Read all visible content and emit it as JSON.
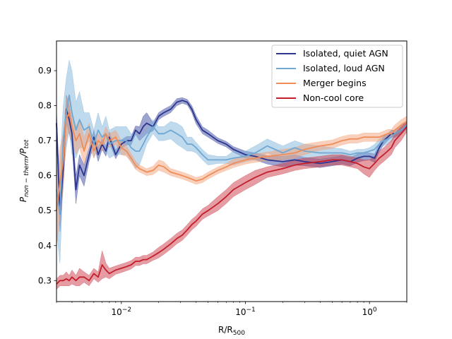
{
  "chart_data": {
    "type": "line",
    "xscale": "log",
    "xlim": [
      0.003,
      2.0
    ],
    "ylim": [
      0.24,
      0.985
    ],
    "xlabel_main": "R/R",
    "xlabel_sub": "500",
    "ylabel_main": "P",
    "ylabel_sub1": "non − therm",
    "ylabel_mid": "/P",
    "ylabel_sub2": "tot",
    "x_ticks": [
      {
        "value": 0.01,
        "label_base": "10",
        "label_exp": "−2"
      },
      {
        "value": 0.1,
        "label_base": "10",
        "label_exp": "−1"
      },
      {
        "value": 1,
        "label_base": "10",
        "label_exp": "0"
      }
    ],
    "y_ticks": [
      0.3,
      0.4,
      0.5,
      0.6,
      0.7,
      0.8,
      0.9
    ],
    "y_tick_labels": [
      "0.3",
      "0.4",
      "0.5",
      "0.6",
      "0.7",
      "0.8",
      "0.9"
    ],
    "grid": false,
    "legend_position": "top-right",
    "series": [
      {
        "name": "Isolated, quiet AGN",
        "color": "#2c3590",
        "band_color": "#3a4aa0",
        "x": [
          0.003,
          0.0032,
          0.0034,
          0.0036,
          0.0038,
          0.004,
          0.0043,
          0.0046,
          0.005,
          0.0055,
          0.006,
          0.0065,
          0.007,
          0.0075,
          0.008,
          0.009,
          0.01,
          0.011,
          0.012,
          0.013,
          0.014,
          0.015,
          0.016,
          0.018,
          0.02,
          0.022,
          0.025,
          0.028,
          0.031,
          0.034,
          0.037,
          0.04,
          0.045,
          0.05,
          0.06,
          0.07,
          0.08,
          0.1,
          0.12,
          0.15,
          0.2,
          0.25,
          0.3,
          0.4,
          0.5,
          0.6,
          0.7,
          0.8,
          0.9,
          1.0,
          1.1,
          1.2,
          1.3,
          1.4,
          1.5,
          1.6,
          1.8,
          2.0
        ],
        "y": [
          0.75,
          0.49,
          0.62,
          0.79,
          0.76,
          0.72,
          0.56,
          0.63,
          0.6,
          0.66,
          0.71,
          0.66,
          0.69,
          0.67,
          0.71,
          0.66,
          0.69,
          0.7,
          0.7,
          0.73,
          0.72,
          0.74,
          0.75,
          0.74,
          0.77,
          0.78,
          0.79,
          0.81,
          0.815,
          0.81,
          0.79,
          0.76,
          0.73,
          0.72,
          0.7,
          0.69,
          0.675,
          0.66,
          0.655,
          0.645,
          0.64,
          0.645,
          0.64,
          0.635,
          0.64,
          0.645,
          0.64,
          0.65,
          0.655,
          0.655,
          0.65,
          0.68,
          0.7,
          0.71,
          0.72,
          0.72,
          0.73,
          0.745
        ],
        "spread": [
          0.04,
          0.05,
          0.05,
          0.04,
          0.04,
          0.03,
          0.04,
          0.03,
          0.03,
          0.02,
          0.02,
          0.02,
          0.015,
          0.015,
          0.015,
          0.012,
          0.012,
          0.012,
          0.012,
          0.012,
          0.02,
          0.03,
          0.03,
          0.012,
          0.01,
          0.01,
          0.01,
          0.01,
          0.008,
          0.008,
          0.01,
          0.012,
          0.01,
          0.01,
          0.008,
          0.008,
          0.008,
          0.01,
          0.01,
          0.012,
          0.015,
          0.015,
          0.012,
          0.012,
          0.012,
          0.012,
          0.012,
          0.012,
          0.012,
          0.01,
          0.012,
          0.012,
          0.012,
          0.01,
          0.01,
          0.01,
          0.01,
          0.01
        ]
      },
      {
        "name": "Isolated, loud AGN",
        "color": "#6fa8d2",
        "band_color": "#7fb4dc",
        "x": [
          0.003,
          0.0032,
          0.0034,
          0.0036,
          0.0038,
          0.004,
          0.0043,
          0.0046,
          0.005,
          0.0055,
          0.006,
          0.0065,
          0.007,
          0.0075,
          0.008,
          0.009,
          0.01,
          0.011,
          0.012,
          0.013,
          0.014,
          0.015,
          0.016,
          0.018,
          0.02,
          0.022,
          0.025,
          0.028,
          0.031,
          0.034,
          0.037,
          0.04,
          0.045,
          0.05,
          0.06,
          0.07,
          0.08,
          0.1,
          0.12,
          0.15,
          0.2,
          0.25,
          0.3,
          0.4,
          0.5,
          0.6,
          0.7,
          0.8,
          0.9,
          1.0,
          1.1,
          1.2,
          1.3,
          1.4,
          1.5,
          1.6,
          1.8,
          2.0
        ],
        "y": [
          0.56,
          0.49,
          0.7,
          0.78,
          0.83,
          0.78,
          0.73,
          0.76,
          0.73,
          0.74,
          0.69,
          0.73,
          0.71,
          0.72,
          0.69,
          0.7,
          0.7,
          0.7,
          0.68,
          0.67,
          0.67,
          0.69,
          0.71,
          0.74,
          0.72,
          0.72,
          0.73,
          0.72,
          0.71,
          0.69,
          0.69,
          0.68,
          0.66,
          0.645,
          0.645,
          0.645,
          0.65,
          0.655,
          0.665,
          0.685,
          0.665,
          0.68,
          0.67,
          0.665,
          0.665,
          0.665,
          0.66,
          0.665,
          0.665,
          0.67,
          0.675,
          0.69,
          0.7,
          0.705,
          0.71,
          0.72,
          0.73,
          0.745
        ],
        "spread": [
          0.12,
          0.14,
          0.1,
          0.1,
          0.1,
          0.12,
          0.08,
          0.08,
          0.05,
          0.04,
          0.04,
          0.05,
          0.03,
          0.05,
          0.04,
          0.04,
          0.04,
          0.04,
          0.04,
          0.05,
          0.04,
          0.03,
          0.02,
          0.02,
          0.02,
          0.02,
          0.025,
          0.03,
          0.03,
          0.02,
          0.02,
          0.015,
          0.015,
          0.015,
          0.01,
          0.01,
          0.02,
          0.015,
          0.02,
          0.02,
          0.02,
          0.02,
          0.02,
          0.02,
          0.015,
          0.012,
          0.01,
          0.01,
          0.01,
          0.01,
          0.015,
          0.015,
          0.015,
          0.015,
          0.012,
          0.012,
          0.012,
          0.012
        ]
      },
      {
        "name": "Merger begins",
        "color": "#f08c58",
        "band_color": "#f4a27a",
        "x": [
          0.003,
          0.0032,
          0.0034,
          0.0036,
          0.0038,
          0.004,
          0.0043,
          0.0046,
          0.005,
          0.0055,
          0.006,
          0.0065,
          0.007,
          0.0075,
          0.008,
          0.009,
          0.01,
          0.011,
          0.012,
          0.013,
          0.014,
          0.015,
          0.016,
          0.018,
          0.02,
          0.022,
          0.025,
          0.028,
          0.031,
          0.034,
          0.037,
          0.04,
          0.045,
          0.05,
          0.06,
          0.07,
          0.08,
          0.1,
          0.12,
          0.15,
          0.2,
          0.25,
          0.3,
          0.4,
          0.5,
          0.6,
          0.7,
          0.8,
          0.9,
          1.0,
          1.1,
          1.2,
          1.3,
          1.4,
          1.5,
          1.6,
          1.8,
          2.0
        ],
        "y": [
          0.5,
          0.58,
          0.64,
          0.76,
          0.78,
          0.74,
          0.7,
          0.72,
          0.67,
          0.72,
          0.67,
          0.7,
          0.69,
          0.72,
          0.7,
          0.71,
          0.68,
          0.67,
          0.65,
          0.63,
          0.62,
          0.615,
          0.61,
          0.615,
          0.63,
          0.625,
          0.61,
          0.605,
          0.6,
          0.595,
          0.59,
          0.585,
          0.59,
          0.6,
          0.615,
          0.625,
          0.635,
          0.645,
          0.65,
          0.655,
          0.66,
          0.665,
          0.675,
          0.685,
          0.69,
          0.7,
          0.705,
          0.705,
          0.71,
          0.71,
          0.71,
          0.71,
          0.715,
          0.72,
          0.72,
          0.73,
          0.745,
          0.755
        ],
        "spread": [
          0.1,
          0.1,
          0.08,
          0.06,
          0.05,
          0.04,
          0.04,
          0.04,
          0.04,
          0.03,
          0.02,
          0.02,
          0.02,
          0.02,
          0.02,
          0.02,
          0.02,
          0.015,
          0.012,
          0.012,
          0.01,
          0.01,
          0.01,
          0.012,
          0.015,
          0.015,
          0.01,
          0.01,
          0.01,
          0.01,
          0.01,
          0.01,
          0.01,
          0.01,
          0.01,
          0.01,
          0.012,
          0.012,
          0.012,
          0.012,
          0.015,
          0.015,
          0.015,
          0.012,
          0.012,
          0.012,
          0.012,
          0.012,
          0.012,
          0.012,
          0.012,
          0.012,
          0.012,
          0.012,
          0.012,
          0.015,
          0.015,
          0.015
        ]
      },
      {
        "name": "Non-cool core",
        "color": "#c21e2c",
        "band_color": "#cc3b47",
        "x": [
          0.003,
          0.0032,
          0.0034,
          0.0036,
          0.0038,
          0.004,
          0.0043,
          0.0046,
          0.005,
          0.0055,
          0.006,
          0.0065,
          0.007,
          0.0075,
          0.008,
          0.009,
          0.01,
          0.011,
          0.012,
          0.013,
          0.014,
          0.015,
          0.016,
          0.018,
          0.02,
          0.022,
          0.025,
          0.028,
          0.031,
          0.034,
          0.037,
          0.04,
          0.045,
          0.05,
          0.06,
          0.07,
          0.08,
          0.1,
          0.12,
          0.15,
          0.2,
          0.25,
          0.3,
          0.4,
          0.5,
          0.6,
          0.7,
          0.8,
          0.9,
          1.0,
          1.1,
          1.2,
          1.3,
          1.4,
          1.5,
          1.6,
          1.8,
          2.0
        ],
        "y": [
          0.29,
          0.3,
          0.3,
          0.305,
          0.3,
          0.31,
          0.3,
          0.31,
          0.31,
          0.3,
          0.32,
          0.31,
          0.345,
          0.33,
          0.32,
          0.33,
          0.335,
          0.34,
          0.345,
          0.355,
          0.355,
          0.36,
          0.36,
          0.37,
          0.38,
          0.39,
          0.405,
          0.42,
          0.43,
          0.445,
          0.46,
          0.47,
          0.49,
          0.5,
          0.52,
          0.54,
          0.56,
          0.58,
          0.595,
          0.61,
          0.62,
          0.63,
          0.635,
          0.64,
          0.645,
          0.645,
          0.64,
          0.635,
          0.625,
          0.62,
          0.635,
          0.65,
          0.66,
          0.67,
          0.68,
          0.7,
          0.72,
          0.74
        ],
        "spread": [
          0.015,
          0.015,
          0.015,
          0.02,
          0.015,
          0.02,
          0.015,
          0.025,
          0.015,
          0.015,
          0.015,
          0.015,
          0.04,
          0.02,
          0.015,
          0.012,
          0.012,
          0.012,
          0.012,
          0.012,
          0.012,
          0.012,
          0.012,
          0.012,
          0.015,
          0.015,
          0.015,
          0.015,
          0.015,
          0.015,
          0.015,
          0.015,
          0.015,
          0.015,
          0.02,
          0.02,
          0.02,
          0.02,
          0.02,
          0.015,
          0.015,
          0.015,
          0.015,
          0.015,
          0.015,
          0.015,
          0.015,
          0.015,
          0.02,
          0.025,
          0.02,
          0.02,
          0.02,
          0.02,
          0.02,
          0.02,
          0.02,
          0.015
        ]
      }
    ]
  }
}
